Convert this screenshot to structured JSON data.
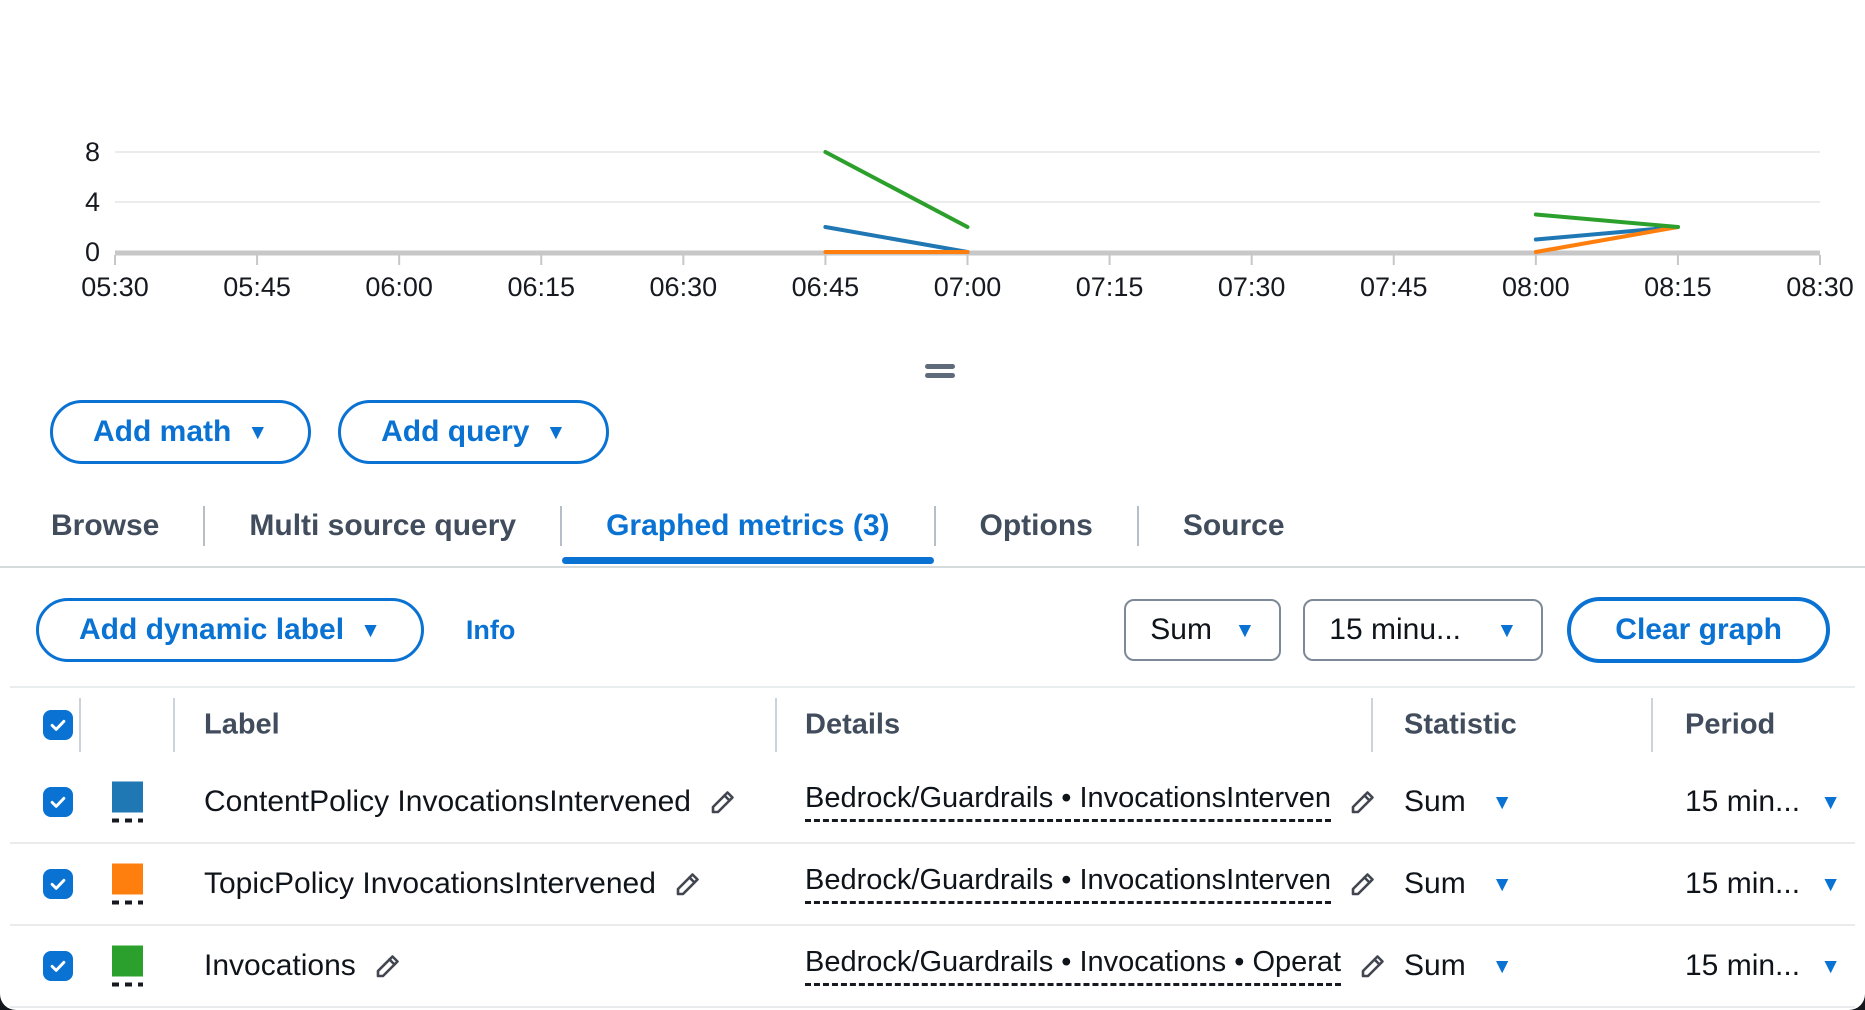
{
  "chart_data": {
    "type": "line",
    "title": "",
    "xlabel": "",
    "ylabel": "",
    "categories": [
      "05:30",
      "05:45",
      "06:00",
      "06:15",
      "06:30",
      "06:45",
      "07:00",
      "07:15",
      "07:30",
      "07:45",
      "08:00",
      "08:15",
      "08:30"
    ],
    "yticks": [
      0,
      4,
      8
    ],
    "ylim": [
      0,
      8
    ],
    "grid": true,
    "legend_position": "none",
    "series": [
      {
        "name": "ContentPolicy InvocationsIntervened",
        "color": "#1f77b4",
        "values": [
          null,
          null,
          null,
          null,
          null,
          2,
          0,
          null,
          null,
          null,
          1,
          2,
          null
        ]
      },
      {
        "name": "TopicPolicy InvocationsIntervened",
        "color": "#ff7f0e",
        "values": [
          null,
          null,
          null,
          null,
          null,
          0,
          0,
          null,
          null,
          null,
          0,
          2,
          null
        ]
      },
      {
        "name": "Invocations",
        "color": "#2ca02c",
        "values": [
          null,
          null,
          null,
          null,
          null,
          8,
          2,
          null,
          null,
          null,
          3,
          2,
          null
        ]
      }
    ]
  },
  "query_actions": {
    "add_math_label": "Add math",
    "add_query_label": "Add query"
  },
  "tabs": [
    {
      "label": "Browse",
      "active": false
    },
    {
      "label": "Multi source query",
      "active": false
    },
    {
      "label": "Graphed metrics (3)",
      "active": true
    },
    {
      "label": "Options",
      "active": false
    },
    {
      "label": "Source",
      "active": false
    }
  ],
  "metrics_toolbar": {
    "add_dynamic_label_label": "Add dynamic label",
    "info_label": "Info",
    "statistic_value": "Sum",
    "period_value": "15 minu...",
    "clear_graph_label": "Clear graph"
  },
  "table": {
    "select_all_checked": true,
    "headers": {
      "label": "Label",
      "details": "Details",
      "statistic": "Statistic",
      "period": "Period"
    },
    "rows": [
      {
        "checked": true,
        "color": "#1f77b4",
        "label": "ContentPolicy InvocationsIntervened",
        "details": "Bedrock/Guardrails • InvocationsInterven",
        "statistic": "Sum",
        "period": "15 min..."
      },
      {
        "checked": true,
        "color": "#ff7f0e",
        "label": "TopicPolicy InvocationsIntervened",
        "details": "Bedrock/Guardrails • InvocationsInterven",
        "statistic": "Sum",
        "period": "15 min..."
      },
      {
        "checked": true,
        "color": "#2ca02c",
        "label": "Invocations",
        "details": "Bedrock/Guardrails • Invocations • Operat",
        "statistic": "Sum",
        "period": "15 min..."
      }
    ]
  },
  "colors": {
    "accent": "#0972d3",
    "text": "#0f141a",
    "header_text": "#414d5c",
    "axis_text": "#16191f",
    "row_border": "#e9ebed"
  }
}
